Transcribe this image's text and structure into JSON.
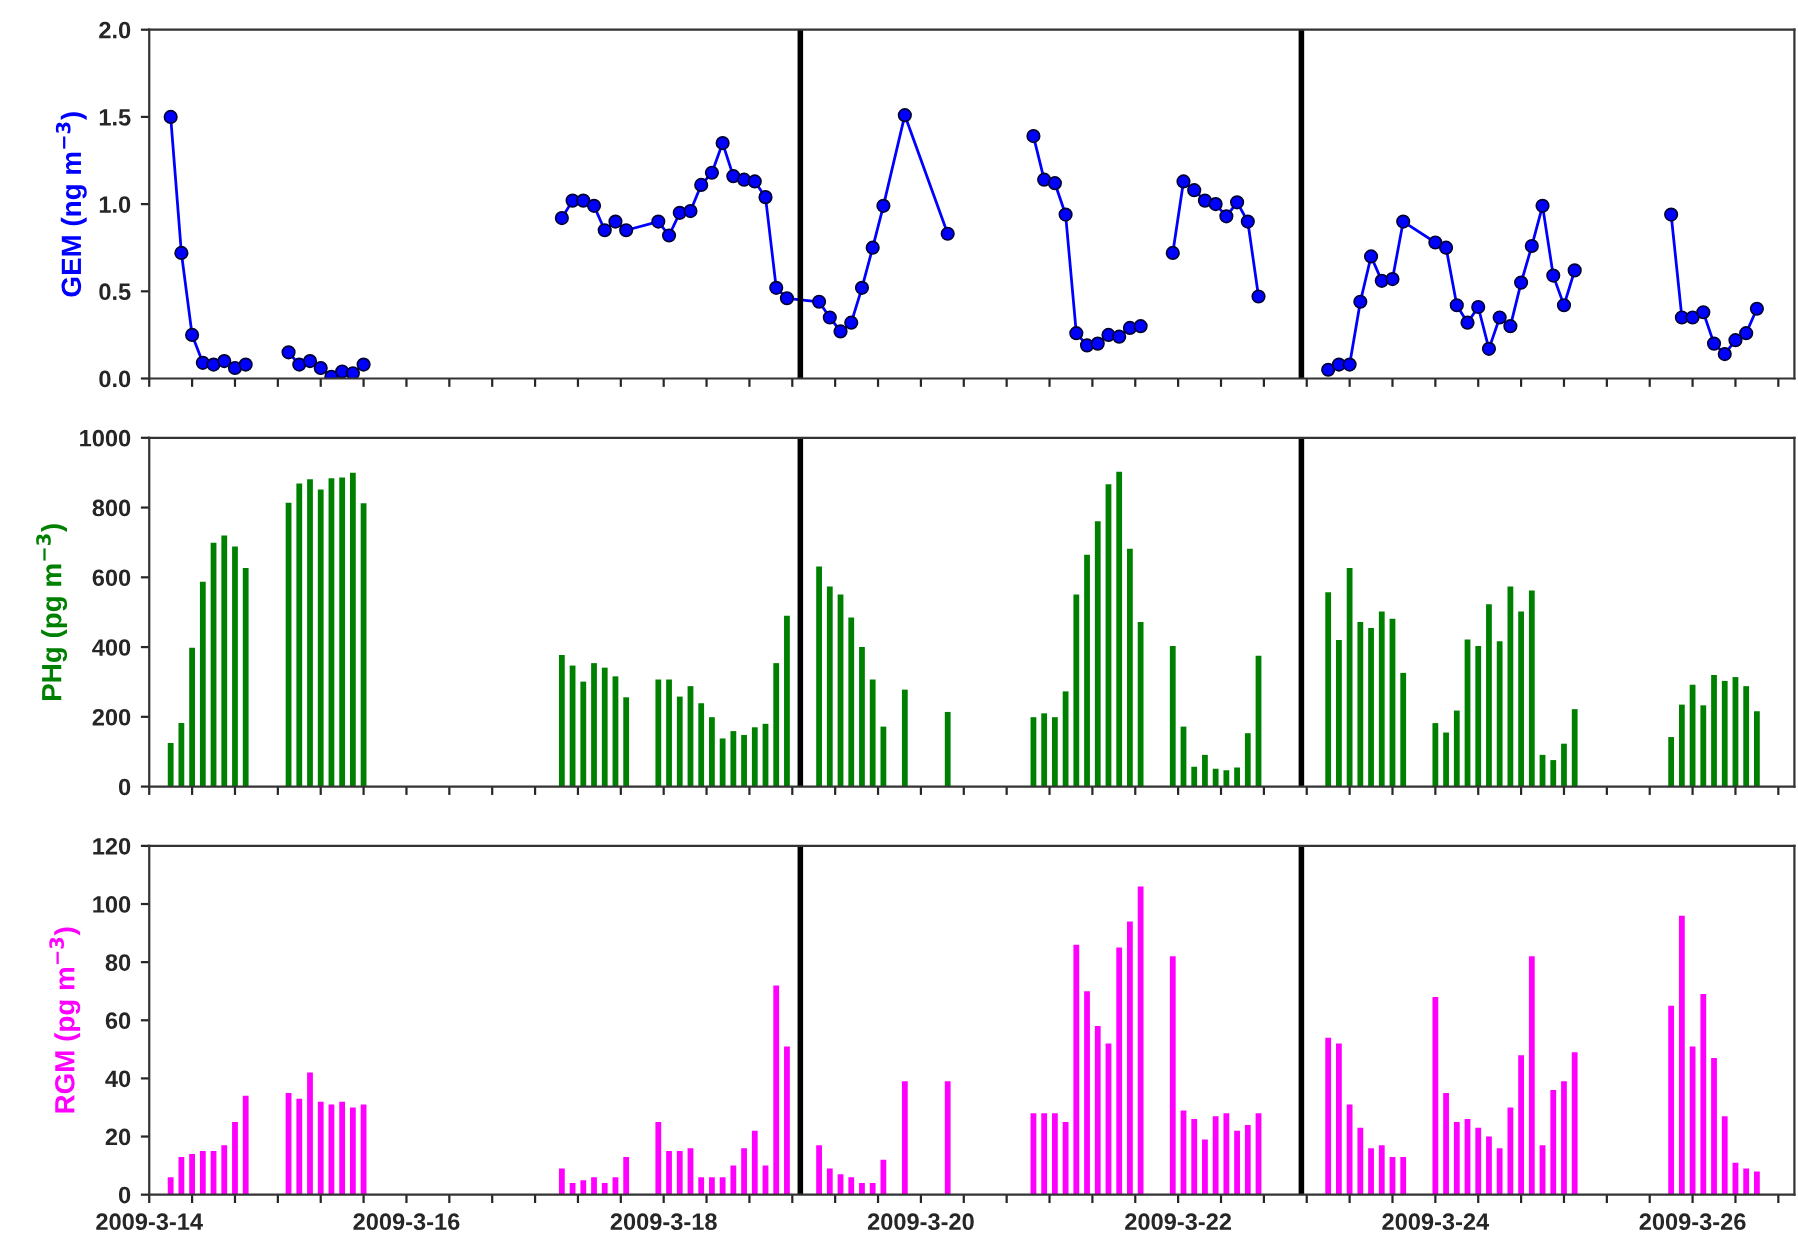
{
  "chart_data": [
    {
      "type": "line",
      "ylabel": "GEM (ng m$^{−3}$)",
      "marker": "circle",
      "line_style": "solid",
      "grid": false,
      "tick_labels": "y",
      "x": [
        "2009-03-14T04:00",
        "2009-03-14T06:00",
        "2009-03-14T08:00",
        "2009-03-14T10:00",
        "2009-03-14T12:00",
        "2009-03-14T14:00",
        "2009-03-14T16:00",
        "2009-03-14T18:00",
        "2009-03-14T22:00",
        "2009-03-15T02:00",
        "2009-03-15T04:00",
        "2009-03-15T06:00",
        "2009-03-15T08:00",
        "2009-03-15T10:00",
        "2009-03-15T12:00",
        "2009-03-15T14:00",
        "2009-03-15T16:00",
        "2009-03-16T00:00",
        "2009-03-17T05:00",
        "2009-03-17T07:00",
        "2009-03-17T09:00",
        "2009-03-17T11:00",
        "2009-03-17T13:00",
        "2009-03-17T15:00",
        "2009-03-17T17:00",
        "2009-03-17T23:00",
        "2009-03-18T01:00",
        "2009-03-18T03:00",
        "2009-03-18T05:00",
        "2009-03-18T07:00",
        "2009-03-18T09:00",
        "2009-03-18T11:00",
        "2009-03-18T13:00",
        "2009-03-18T15:00",
        "2009-03-18T17:00",
        "2009-03-18T19:00",
        "2009-03-18T21:00",
        "2009-03-18T23:00",
        "2009-03-19T05:00",
        "2009-03-19T07:00",
        "2009-03-19T09:00",
        "2009-03-19T11:00",
        "2009-03-19T13:00",
        "2009-03-19T15:00",
        "2009-03-19T17:00",
        "2009-03-19T21:00",
        "2009-03-20T05:00",
        "2009-03-20T13:00",
        "2009-03-20T21:00",
        "2009-03-20T23:00",
        "2009-03-21T01:00",
        "2009-03-21T03:00",
        "2009-03-21T05:00",
        "2009-03-21T07:00",
        "2009-03-21T09:00",
        "2009-03-21T11:00",
        "2009-03-21T13:00",
        "2009-03-21T15:00",
        "2009-03-21T17:00",
        "2009-03-21T20:00",
        "2009-03-21T23:00",
        "2009-03-22T01:00",
        "2009-03-22T03:00",
        "2009-03-22T05:00",
        "2009-03-22T07:00",
        "2009-03-22T09:00",
        "2009-03-22T11:00",
        "2009-03-22T13:00",
        "2009-03-22T15:00",
        "2009-03-22T22:00",
        "2009-03-23T04:00",
        "2009-03-23T06:00",
        "2009-03-23T08:00",
        "2009-03-23T10:00",
        "2009-03-23T12:00",
        "2009-03-23T14:00",
        "2009-03-23T16:00",
        "2009-03-23T18:00",
        "2009-03-24T00:00",
        "2009-03-24T02:00",
        "2009-03-24T04:00",
        "2009-03-24T06:00",
        "2009-03-24T08:00",
        "2009-03-24T10:00",
        "2009-03-24T12:00",
        "2009-03-24T14:00",
        "2009-03-24T16:00",
        "2009-03-24T18:00",
        "2009-03-24T20:00",
        "2009-03-24T22:00",
        "2009-03-25T00:00",
        "2009-03-25T02:00",
        "2009-03-25T11:00",
        "2009-03-25T20:00",
        "2009-03-25T22:00",
        "2009-03-26T00:00",
        "2009-03-26T02:00",
        "2009-03-26T04:00",
        "2009-03-26T06:00",
        "2009-03-26T08:00",
        "2009-03-26T10:00",
        "2009-03-26T12:00"
      ],
      "series": [
        {
          "color": "#0000ff",
          "values": [
            1.5,
            0.72,
            0.25,
            0.09,
            0.08,
            0.1,
            0.06,
            0.08,
            null,
            0.15,
            0.08,
            0.1,
            0.06,
            0.01,
            0.04,
            0.03,
            0.08,
            null,
            0.92,
            1.02,
            1.02,
            0.99,
            0.85,
            0.9,
            0.85,
            0.9,
            0.82,
            0.95,
            0.96,
            1.11,
            1.18,
            1.35,
            1.16,
            1.14,
            1.13,
            1.04,
            0.52,
            0.46,
            0.44,
            0.35,
            0.27,
            0.32,
            0.52,
            0.75,
            0.99,
            1.51,
            0.83,
            null,
            1.39,
            1.14,
            1.12,
            0.94,
            0.26,
            0.19,
            0.2,
            0.25,
            0.24,
            0.29,
            0.3,
            null,
            0.72,
            1.13,
            1.08,
            1.02,
            1.0,
            0.93,
            1.01,
            0.9,
            0.47,
            null,
            0.05,
            0.08,
            0.08,
            0.44,
            0.7,
            0.56,
            0.57,
            0.9,
            0.78,
            0.75,
            0.42,
            0.32,
            0.41,
            0.17,
            0.35,
            0.3,
            0.55,
            0.76,
            0.99,
            0.59,
            0.42,
            0.62,
            null,
            0.94,
            0.35,
            0.35,
            0.38,
            0.2,
            0.14,
            0.22,
            0.26,
            0.4
          ]
        }
      ],
      "ylim": [
        0,
        2.0
      ],
      "yticks": [
        {
          "value": 0,
          "label": "0.0"
        },
        {
          "value": 0.5,
          "label": "0.5"
        },
        {
          "value": 1.0,
          "label": "1.0"
        },
        {
          "value": 1.5,
          "label": "1.5"
        },
        {
          "value": 2.0,
          "label": "2.0"
        }
      ],
      "xlim": [
        "2009-03-14",
        "2009-03-26T19:00"
      ],
      "xticks": [
        {
          "value": "2009-03-14",
          "label": null
        },
        {
          "value": "2009-03-14T08:00",
          "label": null
        },
        {
          "value": "2009-03-14T16:00",
          "label": null
        },
        {
          "value": "2009-03-15",
          "label": null
        },
        {
          "value": "2009-03-15T08:00",
          "label": null
        },
        {
          "value": "2009-03-15T16:00",
          "label": null
        },
        {
          "value": "2009-03-16",
          "label": null
        },
        {
          "value": "2009-03-16T08:00",
          "label": null
        },
        {
          "value": "2009-03-16T16:00",
          "label": null
        },
        {
          "value": "2009-03-17",
          "label": null
        },
        {
          "value": "2009-03-17T08:00",
          "label": null
        },
        {
          "value": "2009-03-17T16:00",
          "label": null
        },
        {
          "value": "2009-03-18",
          "label": null
        },
        {
          "value": "2009-03-18T08:00",
          "label": null
        },
        {
          "value": "2009-03-18T16:00",
          "label": null
        },
        {
          "value": "2009-03-19",
          "label": null
        },
        {
          "value": "2009-03-19T08:00",
          "label": null
        },
        {
          "value": "2009-03-19T16:00",
          "label": null
        },
        {
          "value": "2009-03-20",
          "label": null
        },
        {
          "value": "2009-03-20T08:00",
          "label": null
        },
        {
          "value": "2009-03-20T16:00",
          "label": null
        },
        {
          "value": "2009-03-21",
          "label": null
        },
        {
          "value": "2009-03-21T08:00",
          "label": null
        },
        {
          "value": "2009-03-21T16:00",
          "label": null
        },
        {
          "value": "2009-03-22",
          "label": null
        },
        {
          "value": "2009-03-22T08:00",
          "label": null
        },
        {
          "value": "2009-03-22T16:00",
          "label": null
        },
        {
          "value": "2009-03-23",
          "label": null
        },
        {
          "value": "2009-03-23T08:00",
          "label": null
        },
        {
          "value": "2009-03-23T16:00",
          "label": null
        },
        {
          "value": "2009-03-24",
          "label": null
        },
        {
          "value": "2009-03-24T08:00",
          "label": null
        },
        {
          "value": "2009-03-24T16:00",
          "label": null
        },
        {
          "value": "2009-03-25",
          "label": null
        },
        {
          "value": "2009-03-25T08:00",
          "label": null
        },
        {
          "value": "2009-03-25T16:00",
          "label": null
        },
        {
          "value": "2009-03-26",
          "label": null
        },
        {
          "value": "2009-03-26T08:00",
          "label": null
        },
        {
          "value": "2009-03-26T16:00",
          "label": null
        }
      ],
      "ref_lines": [
        {
          "axis": "x",
          "value": "2009-03-19T01:30",
          "color": "#000000",
          "line_style": "solid"
        },
        {
          "axis": "x",
          "value": "2009-03-22T23:00",
          "color": "#000000",
          "line_style": "solid"
        }
      ]
    },
    {
      "type": "bar",
      "ylabel": "PHg (pg m$^{−3}$)",
      "grid": false,
      "tick_labels": "y",
      "x": [
        "2009-03-14T04:00",
        "2009-03-14T06:00",
        "2009-03-14T08:00",
        "2009-03-14T10:00",
        "2009-03-14T12:00",
        "2009-03-14T14:00",
        "2009-03-14T16:00",
        "2009-03-14T18:00",
        "2009-03-15T02:00",
        "2009-03-15T04:00",
        "2009-03-15T06:00",
        "2009-03-15T08:00",
        "2009-03-15T10:00",
        "2009-03-15T12:00",
        "2009-03-15T14:00",
        "2009-03-15T16:00",
        "2009-03-17T05:00",
        "2009-03-17T07:00",
        "2009-03-17T09:00",
        "2009-03-17T11:00",
        "2009-03-17T13:00",
        "2009-03-17T15:00",
        "2009-03-17T17:00",
        "2009-03-17T23:00",
        "2009-03-18T01:00",
        "2009-03-18T03:00",
        "2009-03-18T05:00",
        "2009-03-18T07:00",
        "2009-03-18T09:00",
        "2009-03-18T11:00",
        "2009-03-18T13:00",
        "2009-03-18T15:00",
        "2009-03-18T17:00",
        "2009-03-18T19:00",
        "2009-03-18T21:00",
        "2009-03-18T23:00",
        "2009-03-19T05:00",
        "2009-03-19T07:00",
        "2009-03-19T09:00",
        "2009-03-19T11:00",
        "2009-03-19T13:00",
        "2009-03-19T15:00",
        "2009-03-19T17:00",
        "2009-03-19T21:00",
        "2009-03-20T05:00",
        "2009-03-20T21:00",
        "2009-03-20T23:00",
        "2009-03-21T01:00",
        "2009-03-21T03:00",
        "2009-03-21T05:00",
        "2009-03-21T07:00",
        "2009-03-21T09:00",
        "2009-03-21T11:00",
        "2009-03-21T13:00",
        "2009-03-21T15:00",
        "2009-03-21T17:00",
        "2009-03-21T23:00",
        "2009-03-22T01:00",
        "2009-03-22T03:00",
        "2009-03-22T05:00",
        "2009-03-22T07:00",
        "2009-03-22T09:00",
        "2009-03-22T11:00",
        "2009-03-22T13:00",
        "2009-03-22T15:00",
        "2009-03-23T04:00",
        "2009-03-23T06:00",
        "2009-03-23T08:00",
        "2009-03-23T10:00",
        "2009-03-23T12:00",
        "2009-03-23T14:00",
        "2009-03-23T16:00",
        "2009-03-23T18:00",
        "2009-03-24T00:00",
        "2009-03-24T02:00",
        "2009-03-24T04:00",
        "2009-03-24T06:00",
        "2009-03-24T08:00",
        "2009-03-24T10:00",
        "2009-03-24T12:00",
        "2009-03-24T14:00",
        "2009-03-24T16:00",
        "2009-03-24T18:00",
        "2009-03-24T20:00",
        "2009-03-24T22:00",
        "2009-03-25T00:00",
        "2009-03-25T02:00",
        "2009-03-25T20:00",
        "2009-03-25T22:00",
        "2009-03-26T00:00",
        "2009-03-26T02:00",
        "2009-03-26T04:00",
        "2009-03-26T06:00",
        "2009-03-26T08:00",
        "2009-03-26T10:00",
        "2009-03-26T12:00"
      ],
      "series": [
        {
          "color": "#008000",
          "values": [
            125,
            182,
            398,
            587,
            699,
            720,
            688,
            627,
            814,
            869,
            881,
            852,
            884,
            886,
            900,
            812,
            377,
            347,
            301,
            354,
            341,
            316,
            256,
            307,
            307,
            258,
            288,
            239,
            199,
            138,
            159,
            148,
            170,
            180,
            354,
            490,
            631,
            574,
            551,
            485,
            400,
            307,
            172,
            278,
            214,
            199,
            210,
            199,
            273,
            551,
            665,
            761,
            867,
            903,
            682,
            472,
            403,
            172,
            57,
            91,
            51,
            47,
            55,
            153,
            375,
            557,
            420,
            627,
            472,
            455,
            502,
            481,
            326,
            182,
            155,
            218,
            422,
            403,
            523,
            417,
            574,
            502,
            562,
            91,
            76,
            123,
            222,
            142,
            235,
            292,
            233,
            320,
            303,
            314,
            288,
            216
          ]
        }
      ],
      "ylim": [
        0,
        1000
      ],
      "yticks": [
        0,
        200,
        400,
        600,
        800,
        1000
      ],
      "xlim": [
        "2009-03-14",
        "2009-03-26T19:00"
      ],
      "xticks": [
        {
          "value": "2009-03-14",
          "label": null
        },
        {
          "value": "2009-03-14T08:00",
          "label": null
        },
        {
          "value": "2009-03-14T16:00",
          "label": null
        },
        {
          "value": "2009-03-15",
          "label": null
        },
        {
          "value": "2009-03-15T08:00",
          "label": null
        },
        {
          "value": "2009-03-15T16:00",
          "label": null
        },
        {
          "value": "2009-03-16",
          "label": null
        },
        {
          "value": "2009-03-16T08:00",
          "label": null
        },
        {
          "value": "2009-03-16T16:00",
          "label": null
        },
        {
          "value": "2009-03-17",
          "label": null
        },
        {
          "value": "2009-03-17T08:00",
          "label": null
        },
        {
          "value": "2009-03-17T16:00",
          "label": null
        },
        {
          "value": "2009-03-18",
          "label": null
        },
        {
          "value": "2009-03-18T08:00",
          "label": null
        },
        {
          "value": "2009-03-18T16:00",
          "label": null
        },
        {
          "value": "2009-03-19",
          "label": null
        },
        {
          "value": "2009-03-19T08:00",
          "label": null
        },
        {
          "value": "2009-03-19T16:00",
          "label": null
        },
        {
          "value": "2009-03-20",
          "label": null
        },
        {
          "value": "2009-03-20T08:00",
          "label": null
        },
        {
          "value": "2009-03-20T16:00",
          "label": null
        },
        {
          "value": "2009-03-21",
          "label": null
        },
        {
          "value": "2009-03-21T08:00",
          "label": null
        },
        {
          "value": "2009-03-21T16:00",
          "label": null
        },
        {
          "value": "2009-03-22",
          "label": null
        },
        {
          "value": "2009-03-22T08:00",
          "label": null
        },
        {
          "value": "2009-03-22T16:00",
          "label": null
        },
        {
          "value": "2009-03-23",
          "label": null
        },
        {
          "value": "2009-03-23T08:00",
          "label": null
        },
        {
          "value": "2009-03-23T16:00",
          "label": null
        },
        {
          "value": "2009-03-24",
          "label": null
        },
        {
          "value": "2009-03-24T08:00",
          "label": null
        },
        {
          "value": "2009-03-24T16:00",
          "label": null
        },
        {
          "value": "2009-03-25",
          "label": null
        },
        {
          "value": "2009-03-25T08:00",
          "label": null
        },
        {
          "value": "2009-03-25T16:00",
          "label": null
        },
        {
          "value": "2009-03-26",
          "label": null
        },
        {
          "value": "2009-03-26T08:00",
          "label": null
        },
        {
          "value": "2009-03-26T16:00",
          "label": null
        }
      ],
      "ref_lines": [
        {
          "axis": "x",
          "value": "2009-03-19T01:30",
          "color": "#000000",
          "line_style": "solid"
        },
        {
          "axis": "x",
          "value": "2009-03-22T23:00",
          "color": "#000000",
          "line_style": "solid"
        }
      ]
    },
    {
      "type": "bar",
      "ylabel": "RGM (pg m$^{−3}$)",
      "grid": false,
      "x": [
        "2009-03-14T04:00",
        "2009-03-14T06:00",
        "2009-03-14T08:00",
        "2009-03-14T10:00",
        "2009-03-14T12:00",
        "2009-03-14T14:00",
        "2009-03-14T16:00",
        "2009-03-14T18:00",
        "2009-03-15T02:00",
        "2009-03-15T04:00",
        "2009-03-15T06:00",
        "2009-03-15T08:00",
        "2009-03-15T10:00",
        "2009-03-15T12:00",
        "2009-03-15T14:00",
        "2009-03-15T16:00",
        "2009-03-17T05:00",
        "2009-03-17T07:00",
        "2009-03-17T09:00",
        "2009-03-17T11:00",
        "2009-03-17T13:00",
        "2009-03-17T15:00",
        "2009-03-17T17:00",
        "2009-03-17T23:00",
        "2009-03-18T01:00",
        "2009-03-18T03:00",
        "2009-03-18T05:00",
        "2009-03-18T07:00",
        "2009-03-18T09:00",
        "2009-03-18T11:00",
        "2009-03-18T13:00",
        "2009-03-18T15:00",
        "2009-03-18T17:00",
        "2009-03-18T19:00",
        "2009-03-18T21:00",
        "2009-03-18T23:00",
        "2009-03-19T05:00",
        "2009-03-19T07:00",
        "2009-03-19T09:00",
        "2009-03-19T11:00",
        "2009-03-19T13:00",
        "2009-03-19T15:00",
        "2009-03-19T17:00",
        "2009-03-19T21:00",
        "2009-03-20T05:00",
        "2009-03-20T21:00",
        "2009-03-20T23:00",
        "2009-03-21T01:00",
        "2009-03-21T03:00",
        "2009-03-21T05:00",
        "2009-03-21T07:00",
        "2009-03-21T09:00",
        "2009-03-21T11:00",
        "2009-03-21T13:00",
        "2009-03-21T15:00",
        "2009-03-21T17:00",
        "2009-03-21T23:00",
        "2009-03-22T01:00",
        "2009-03-22T03:00",
        "2009-03-22T05:00",
        "2009-03-22T07:00",
        "2009-03-22T09:00",
        "2009-03-22T11:00",
        "2009-03-22T13:00",
        "2009-03-22T15:00",
        "2009-03-23T04:00",
        "2009-03-23T06:00",
        "2009-03-23T08:00",
        "2009-03-23T10:00",
        "2009-03-23T12:00",
        "2009-03-23T14:00",
        "2009-03-23T16:00",
        "2009-03-23T18:00",
        "2009-03-24T00:00",
        "2009-03-24T02:00",
        "2009-03-24T04:00",
        "2009-03-24T06:00",
        "2009-03-24T08:00",
        "2009-03-24T10:00",
        "2009-03-24T12:00",
        "2009-03-24T14:00",
        "2009-03-24T16:00",
        "2009-03-24T18:00",
        "2009-03-24T20:00",
        "2009-03-24T22:00",
        "2009-03-25T00:00",
        "2009-03-25T02:00",
        "2009-03-25T20:00",
        "2009-03-25T22:00",
        "2009-03-26T00:00",
        "2009-03-26T02:00",
        "2009-03-26T04:00",
        "2009-03-26T06:00",
        "2009-03-26T08:00",
        "2009-03-26T10:00",
        "2009-03-26T12:00"
      ],
      "series": [
        {
          "color": "#ff00ff",
          "values": [
            6,
            13,
            14,
            15,
            15,
            17,
            25,
            34,
            35,
            33,
            42,
            32,
            31,
            32,
            30,
            31,
            9,
            4,
            5,
            6,
            4,
            6,
            13,
            25,
            15,
            15,
            16,
            6,
            6,
            6,
            10,
            16,
            22,
            10,
            72,
            51,
            17,
            9,
            7,
            6,
            4,
            4,
            12,
            39,
            39,
            28,
            28,
            28,
            25,
            86,
            70,
            58,
            52,
            85,
            94,
            106,
            82,
            29,
            26,
            19,
            27,
            28,
            22,
            24,
            28,
            54,
            52,
            31,
            23,
            16,
            17,
            13,
            13,
            68,
            35,
            25,
            26,
            23,
            20,
            16,
            30,
            48,
            82,
            17,
            36,
            39,
            49,
            65,
            96,
            51,
            69,
            47,
            27,
            11,
            9,
            8
          ]
        }
      ],
      "ylim": [
        0,
        120
      ],
      "yticks": [
        0,
        20,
        40,
        60,
        80,
        100,
        120
      ],
      "xlim": [
        "2009-03-14",
        "2009-03-26T19:00"
      ],
      "xticks": [
        {
          "value": "2009-03-14",
          "label": "2009-3-14"
        },
        {
          "value": "2009-03-14T08:00",
          "label": null
        },
        {
          "value": "2009-03-14T16:00",
          "label": null
        },
        {
          "value": "2009-03-15",
          "label": null
        },
        {
          "value": "2009-03-15T08:00",
          "label": null
        },
        {
          "value": "2009-03-15T16:00",
          "label": null
        },
        {
          "value": "2009-03-16",
          "label": "2009-3-16"
        },
        {
          "value": "2009-03-16T08:00",
          "label": null
        },
        {
          "value": "2009-03-16T16:00",
          "label": null
        },
        {
          "value": "2009-03-17",
          "label": null
        },
        {
          "value": "2009-03-17T08:00",
          "label": null
        },
        {
          "value": "2009-03-17T16:00",
          "label": null
        },
        {
          "value": "2009-03-18",
          "label": "2009-3-18"
        },
        {
          "value": "2009-03-18T08:00",
          "label": null
        },
        {
          "value": "2009-03-18T16:00",
          "label": null
        },
        {
          "value": "2009-03-19",
          "label": null
        },
        {
          "value": "2009-03-19T08:00",
          "label": null
        },
        {
          "value": "2009-03-19T16:00",
          "label": null
        },
        {
          "value": "2009-03-20",
          "label": "2009-3-20"
        },
        {
          "value": "2009-03-20T08:00",
          "label": null
        },
        {
          "value": "2009-03-20T16:00",
          "label": null
        },
        {
          "value": "2009-03-21",
          "label": null
        },
        {
          "value": "2009-03-21T08:00",
          "label": null
        },
        {
          "value": "2009-03-21T16:00",
          "label": null
        },
        {
          "value": "2009-03-22",
          "label": "2009-3-22"
        },
        {
          "value": "2009-03-22T08:00",
          "label": null
        },
        {
          "value": "2009-03-22T16:00",
          "label": null
        },
        {
          "value": "2009-03-23",
          "label": null
        },
        {
          "value": "2009-03-23T08:00",
          "label": null
        },
        {
          "value": "2009-03-23T16:00",
          "label": null
        },
        {
          "value": "2009-03-24",
          "label": "2009-3-24"
        },
        {
          "value": "2009-03-24T08:00",
          "label": null
        },
        {
          "value": "2009-03-24T16:00",
          "label": null
        },
        {
          "value": "2009-03-25",
          "label": null
        },
        {
          "value": "2009-03-25T08:00",
          "label": null
        },
        {
          "value": "2009-03-25T16:00",
          "label": null
        },
        {
          "value": "2009-03-26",
          "label": "2009-3-26"
        },
        {
          "value": "2009-03-26T08:00",
          "label": null
        },
        {
          "value": "2009-03-26T16:00",
          "label": null
        }
      ],
      "ref_lines": [
        {
          "axis": "x",
          "value": "2009-03-19T01:30",
          "color": "#000000",
          "line_style": "solid"
        },
        {
          "axis": "x",
          "value": "2009-03-22T23:00",
          "color": "#000000",
          "line_style": "solid"
        }
      ]
    }
  ]
}
